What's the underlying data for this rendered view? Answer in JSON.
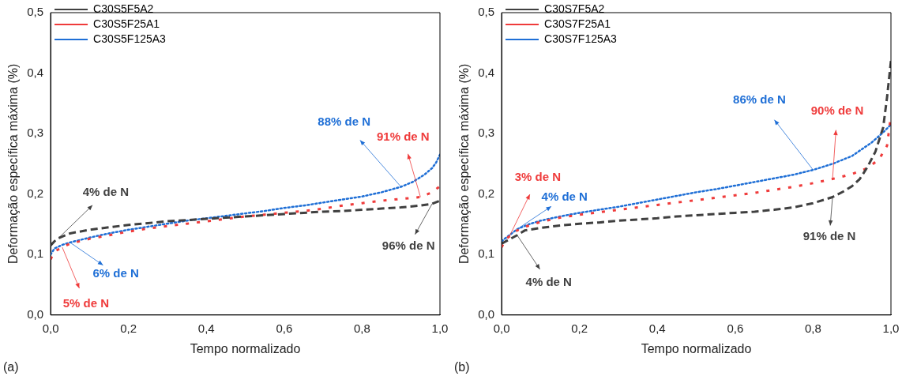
{
  "chart_data": [
    {
      "type": "line",
      "xlabel": "Tempo normalizado",
      "ylabel": "Deformação específica máxima (%)",
      "xlim": [
        0,
        1
      ],
      "ylim": [
        0,
        0.5
      ],
      "xticks": [
        {
          "value": 0,
          "label": "0,0"
        },
        {
          "value": 0.2,
          "label": "0,2"
        },
        {
          "value": 0.4,
          "label": "0,4"
        },
        {
          "value": 0.6,
          "label": "0,6"
        },
        {
          "value": 0.8,
          "label": "0,8"
        },
        {
          "value": 1,
          "label": "1,0"
        }
      ],
      "yticks": [
        {
          "value": 0,
          "label": "0,0"
        },
        {
          "value": 0.1,
          "label": "0,1"
        },
        {
          "value": 0.2,
          "label": "0,2"
        },
        {
          "value": 0.3,
          "label": "0,3"
        },
        {
          "value": 0.4,
          "label": "0,4"
        },
        {
          "value": 0.5,
          "label": "0,5"
        }
      ],
      "legend": "top left",
      "marker": "none",
      "series": [
        {
          "name": "C30S5F5A2",
          "color": "#404040",
          "line_style": "dashed",
          "x": [
            0,
            0.01,
            0.02,
            0.05,
            0.1,
            0.15,
            0.2,
            0.25,
            0.3,
            0.35,
            0.4,
            0.45,
            0.5,
            0.55,
            0.6,
            0.65,
            0.7,
            0.75,
            0.8,
            0.85,
            0.9,
            0.95,
            0.98,
            1
          ],
          "values": [
            0.115,
            0.122,
            0.127,
            0.135,
            0.141,
            0.145,
            0.149,
            0.152,
            0.155,
            0.157,
            0.159,
            0.161,
            0.163,
            0.165,
            0.167,
            0.169,
            0.171,
            0.172,
            0.174,
            0.176,
            0.178,
            0.181,
            0.184,
            0.189
          ]
        },
        {
          "name": "C30S5F25A1",
          "color": "#ef3b3b",
          "line_style": "dashed",
          "x": [
            0,
            0.01,
            0.03,
            0.05,
            0.1,
            0.15,
            0.2,
            0.25,
            0.3,
            0.35,
            0.4,
            0.45,
            0.5,
            0.55,
            0.6,
            0.65,
            0.7,
            0.75,
            0.8,
            0.85,
            0.9,
            0.95,
            0.98,
            1
          ],
          "values": [
            0.092,
            0.105,
            0.112,
            0.118,
            0.126,
            0.132,
            0.138,
            0.143,
            0.147,
            0.151,
            0.155,
            0.159,
            0.163,
            0.166,
            0.169,
            0.172,
            0.176,
            0.181,
            0.185,
            0.189,
            0.192,
            0.195,
            0.203,
            0.213
          ]
        },
        {
          "name": "C30S5F125A3",
          "color": "#1f6fd6",
          "line_style": "dotted",
          "x": [
            0,
            0.01,
            0.03,
            0.05,
            0.1,
            0.15,
            0.2,
            0.25,
            0.3,
            0.35,
            0.4,
            0.45,
            0.5,
            0.55,
            0.6,
            0.65,
            0.7,
            0.75,
            0.8,
            0.85,
            0.9,
            0.93,
            0.96,
            0.98,
            0.99,
            1
          ],
          "values": [
            0.1,
            0.11,
            0.116,
            0.12,
            0.128,
            0.135,
            0.141,
            0.146,
            0.151,
            0.156,
            0.16,
            0.164,
            0.168,
            0.172,
            0.177,
            0.181,
            0.186,
            0.191,
            0.196,
            0.203,
            0.212,
            0.22,
            0.232,
            0.243,
            0.252,
            0.265
          ]
        }
      ],
      "annotations": [
        {
          "text": "4% de N",
          "x": 0.02,
          "y": 0.127
        },
        {
          "text": "96% de N",
          "x": 0.98,
          "y": 0.184
        },
        {
          "text": "88% de N",
          "x": 0.9,
          "y": 0.212
        },
        {
          "text": "91% de N",
          "x": 0.95,
          "y": 0.195
        },
        {
          "text": "6% de N",
          "x": 0.05,
          "y": 0.12
        },
        {
          "text": "5% de N",
          "x": 0.03,
          "y": 0.112
        },
        "(a)"
      ]
    },
    {
      "type": "line",
      "xlabel": "Tempo normalizado",
      "ylabel": "Deformação específica máxima (%)",
      "xlim": [
        0,
        1
      ],
      "ylim": [
        0,
        0.5
      ],
      "xticks": [
        {
          "value": 0,
          "label": "0,0"
        },
        {
          "value": 0.2,
          "label": "0,2"
        },
        {
          "value": 0.4,
          "label": "0,4"
        },
        {
          "value": 0.6,
          "label": "0,6"
        },
        {
          "value": 0.8,
          "label": "0,8"
        },
        {
          "value": 1,
          "label": "1,0"
        }
      ],
      "yticks": [
        {
          "value": 0,
          "label": "0,0"
        },
        {
          "value": 0.1,
          "label": "0,1"
        },
        {
          "value": 0.2,
          "label": "0,2"
        },
        {
          "value": 0.3,
          "label": "0,3"
        },
        {
          "value": 0.4,
          "label": "0,4"
        },
        {
          "value": 0.5,
          "label": "0,5"
        }
      ],
      "legend": "top left",
      "marker": "none",
      "series": [
        {
          "name": "C30S7F5A2",
          "color": "#404040",
          "line_style": "dashed",
          "x": [
            0,
            0.02,
            0.04,
            0.06,
            0.1,
            0.15,
            0.2,
            0.25,
            0.3,
            0.35,
            0.4,
            0.45,
            0.5,
            0.55,
            0.6,
            0.65,
            0.7,
            0.75,
            0.8,
            0.85,
            0.88,
            0.9,
            0.92,
            0.94,
            0.96,
            0.98,
            0.99,
            1
          ],
          "values": [
            0.118,
            0.125,
            0.132,
            0.14,
            0.144,
            0.148,
            0.151,
            0.153,
            0.156,
            0.158,
            0.16,
            0.163,
            0.165,
            0.167,
            0.169,
            0.171,
            0.174,
            0.178,
            0.185,
            0.195,
            0.205,
            0.213,
            0.225,
            0.245,
            0.27,
            0.31,
            0.36,
            0.42
          ]
        },
        {
          "name": "C30S7F25A1",
          "color": "#ef3b3b",
          "line_style": "dashed",
          "x": [
            0,
            0.01,
            0.02,
            0.04,
            0.07,
            0.1,
            0.15,
            0.2,
            0.25,
            0.3,
            0.35,
            0.4,
            0.45,
            0.5,
            0.55,
            0.6,
            0.65,
            0.7,
            0.75,
            0.8,
            0.85,
            0.9,
            0.94,
            0.97,
            0.99,
            1
          ],
          "values": [
            0.112,
            0.125,
            0.13,
            0.14,
            0.148,
            0.154,
            0.161,
            0.166,
            0.17,
            0.174,
            0.178,
            0.182,
            0.186,
            0.19,
            0.194,
            0.198,
            0.202,
            0.207,
            0.212,
            0.218,
            0.225,
            0.233,
            0.243,
            0.258,
            0.28,
            0.33
          ]
        },
        {
          "name": "C30S7F125A3",
          "color": "#1f6fd6",
          "line_style": "dotted",
          "x": [
            0,
            0.02,
            0.04,
            0.07,
            0.1,
            0.15,
            0.2,
            0.25,
            0.3,
            0.35,
            0.4,
            0.45,
            0.5,
            0.55,
            0.6,
            0.65,
            0.7,
            0.75,
            0.8,
            0.85,
            0.9,
            0.95,
            0.98,
            1
          ],
          "values": [
            0.122,
            0.132,
            0.142,
            0.15,
            0.156,
            0.163,
            0.169,
            0.174,
            0.179,
            0.185,
            0.191,
            0.197,
            0.203,
            0.208,
            0.214,
            0.22,
            0.226,
            0.232,
            0.24,
            0.25,
            0.263,
            0.285,
            0.302,
            0.315
          ]
        }
      ],
      "annotations": [
        {
          "text": "3% de N",
          "x": 0.02,
          "y": 0.13
        },
        {
          "text": "4% de N",
          "x": 0.04,
          "y": 0.142
        },
        {
          "text": "4% de N",
          "x": 0.04,
          "y": 0.132
        },
        {
          "text": "86% de N",
          "x": 0.8,
          "y": 0.24
        },
        {
          "text": "90% de N",
          "x": 0.85,
          "y": 0.225
        },
        {
          "text": "91% de N",
          "x": 0.85,
          "y": 0.195
        },
        "(b)"
      ]
    }
  ]
}
